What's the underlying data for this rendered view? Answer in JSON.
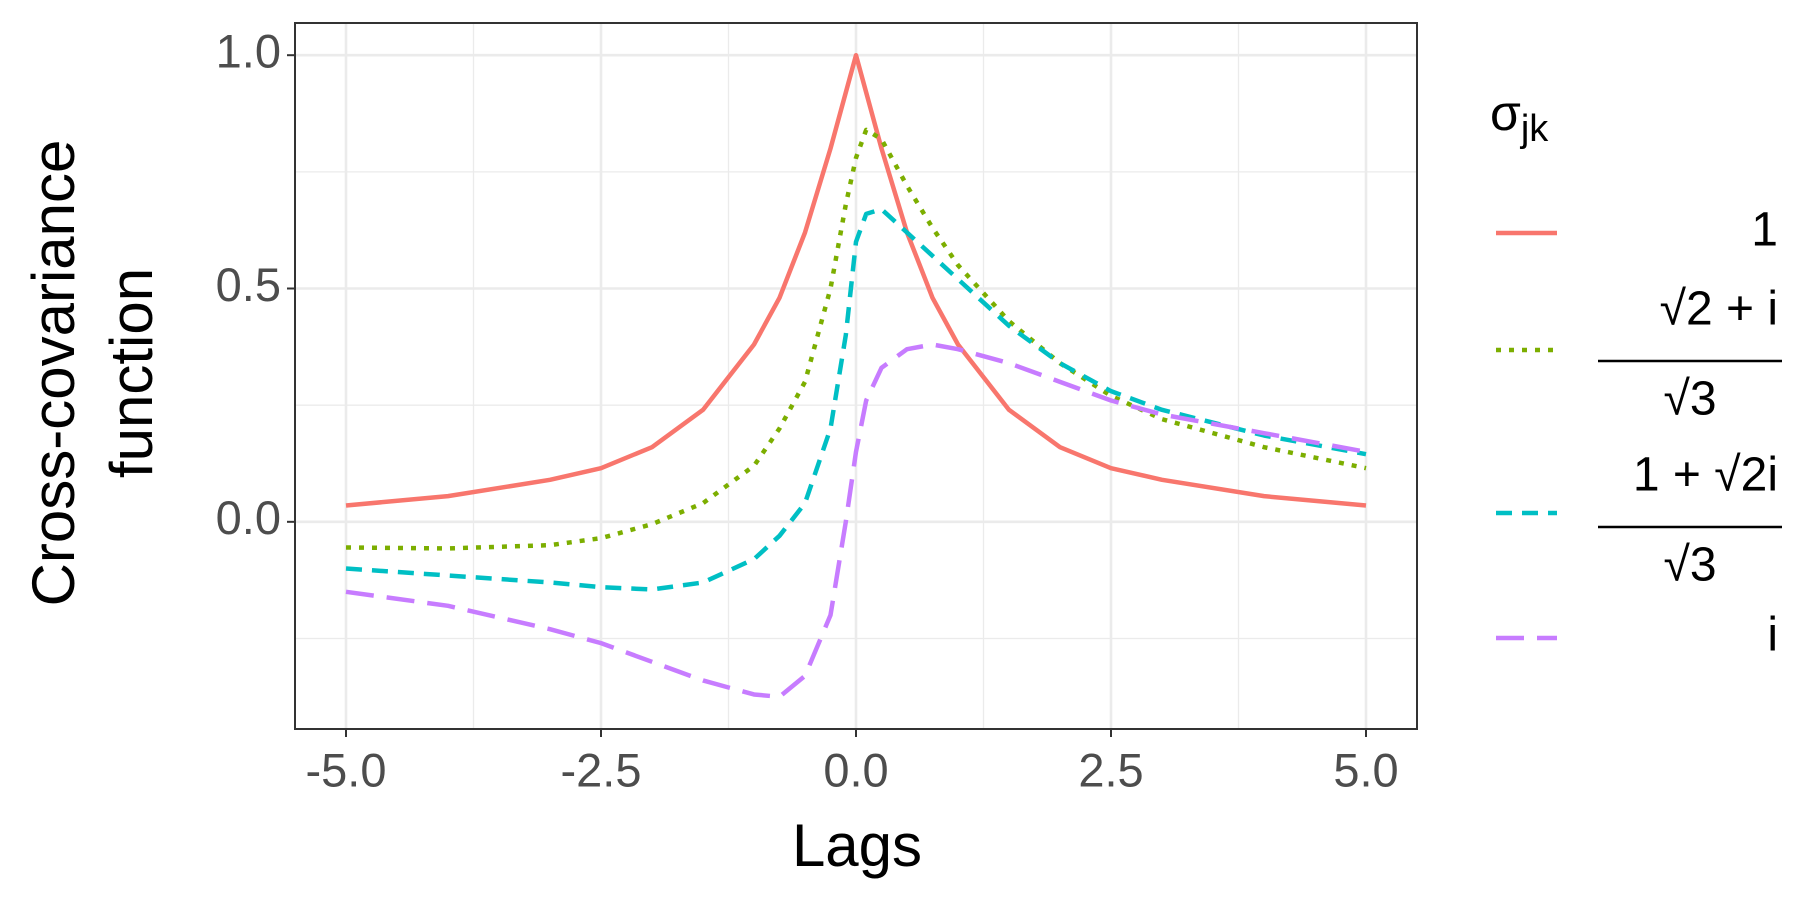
{
  "chart_data": {
    "type": "line",
    "xlabel": "Lags",
    "ylabel": [
      "Cross-covariance",
      "function"
    ],
    "legend_title": {
      "symbol": "σ",
      "subscript": "jk"
    },
    "x": [
      -5,
      -4,
      -3,
      -2.5,
      -2,
      -1.5,
      -1,
      -0.75,
      -0.5,
      -0.25,
      -0.1,
      0,
      0.1,
      0.25,
      0.5,
      0.75,
      1,
      1.5,
      2,
      2.5,
      3,
      4,
      5
    ],
    "series": [
      {
        "name": "1",
        "color": "#f8766d",
        "dash": "none",
        "values": [
          0.035,
          0.055,
          0.09,
          0.115,
          0.16,
          0.24,
          0.38,
          0.48,
          0.62,
          0.8,
          0.92,
          1.0,
          0.92,
          0.8,
          0.62,
          0.48,
          0.38,
          0.24,
          0.16,
          0.115,
          0.09,
          0.055,
          0.035
        ]
      },
      {
        "name": {
          "numerator": "√2 + i",
          "denominator": "√3"
        },
        "color": "#7cae00",
        "dash": "5,8",
        "values": [
          -0.055,
          -0.057,
          -0.05,
          -0.035,
          -0.005,
          0.04,
          0.12,
          0.2,
          0.3,
          0.5,
          0.68,
          0.78,
          0.84,
          0.82,
          0.72,
          0.63,
          0.55,
          0.43,
          0.34,
          0.27,
          0.22,
          0.16,
          0.115
        ]
      },
      {
        "name": {
          "numerator": "1 + √2i",
          "denominator": "√3"
        },
        "color": "#00bfc4",
        "dash": "16,10",
        "values": [
          -0.1,
          -0.115,
          -0.13,
          -0.14,
          -0.145,
          -0.13,
          -0.08,
          -0.03,
          0.04,
          0.2,
          0.4,
          0.6,
          0.66,
          0.67,
          0.62,
          0.57,
          0.52,
          0.42,
          0.34,
          0.28,
          0.24,
          0.185,
          0.145
        ]
      },
      {
        "name": "i",
        "color": "#c77cff",
        "dash": "28,13",
        "values": [
          -0.15,
          -0.18,
          -0.23,
          -0.26,
          -0.3,
          -0.34,
          -0.37,
          -0.375,
          -0.33,
          -0.2,
          0.0,
          0.15,
          0.26,
          0.33,
          0.37,
          0.38,
          0.37,
          0.34,
          0.3,
          0.26,
          0.23,
          0.19,
          0.15
        ]
      }
    ],
    "xlim": [
      -5.5,
      5.5
    ],
    "ylim": [
      -0.444,
      1.069
    ],
    "xticks": [
      {
        "value": -5,
        "label": "-5.0"
      },
      {
        "value": -2.5,
        "label": "-2.5"
      },
      {
        "value": 0,
        "label": "0.0"
      },
      {
        "value": 2.5,
        "label": "2.5"
      },
      {
        "value": 5,
        "label": "5.0"
      }
    ],
    "yticks": [
      {
        "value": 0,
        "label": "0.0"
      },
      {
        "value": 0.5,
        "label": "0.5"
      },
      {
        "value": 1,
        "label": "1.0"
      }
    ],
    "grid": true,
    "legend": "right"
  }
}
